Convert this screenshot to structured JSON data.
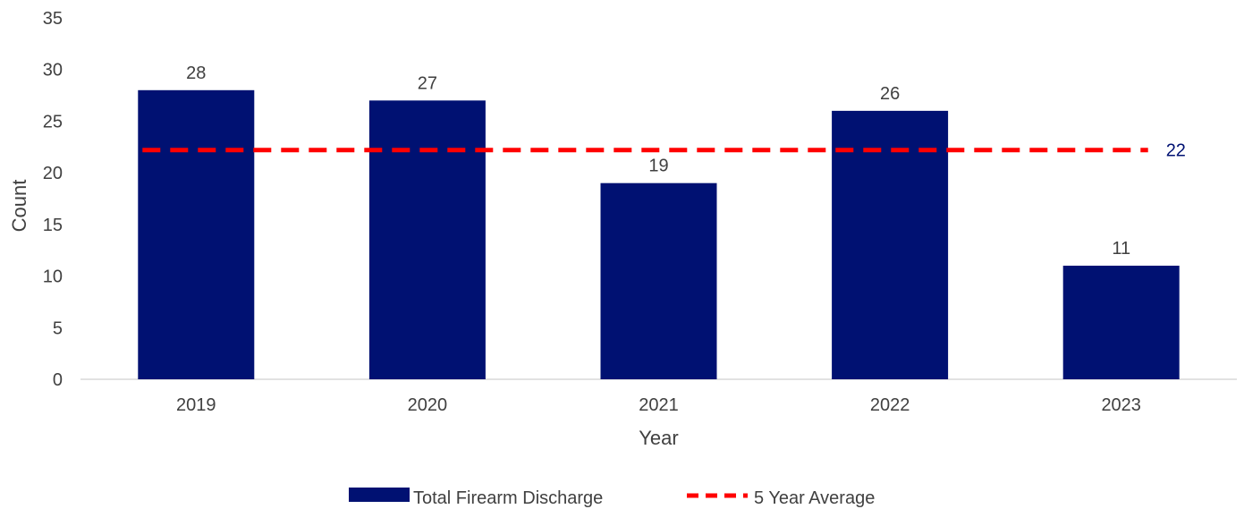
{
  "chart_data": {
    "type": "bar",
    "categories": [
      "2019",
      "2020",
      "2021",
      "2022",
      "2023"
    ],
    "series": [
      {
        "name": "Total Firearm Discharge",
        "type": "bar",
        "values": [
          28,
          27,
          19,
          26,
          11
        ]
      },
      {
        "name": "5 Year Average",
        "type": "line",
        "style": "dashed",
        "values": [
          22.2,
          22.2,
          22.2,
          22.2,
          22.2
        ],
        "end_label": "22"
      }
    ],
    "data_labels": [
      "28",
      "27",
      "19",
      "26",
      "11"
    ],
    "xlabel": "Year",
    "ylabel": "Count",
    "ylim": [
      0,
      35
    ],
    "yticks": [
      "0",
      "5",
      "10",
      "15",
      "20",
      "25",
      "30",
      "35"
    ],
    "grid": false,
    "legend_position": "bottom",
    "colors": {
      "bar": "#001172",
      "average": "#ff0000",
      "average_label": "#001172",
      "axis": "#d9d9d9",
      "text": "#404040"
    }
  }
}
